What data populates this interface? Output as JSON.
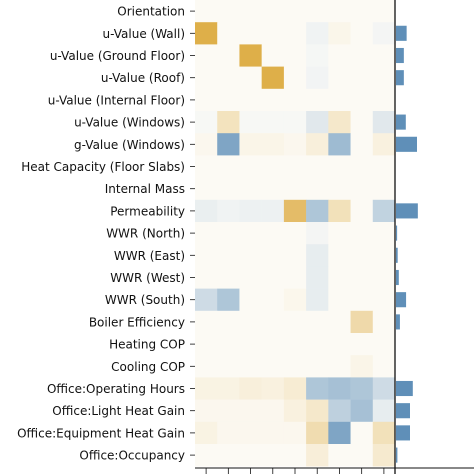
{
  "chart_data": {
    "type": "heatmap",
    "title": "",
    "xlabel": "",
    "ylabel": "",
    "rows": [
      "Orientation",
      "u-Value (Wall)",
      "u-Value (Ground Floor)",
      "u-Value (Roof)",
      "u-Value (Internal Floor)",
      "u-Value (Windows)",
      "g-Value (Windows)",
      "Heat Capacity (Floor Slabs)",
      "Internal Mass",
      "Permeability",
      "WWR (North)",
      "WWR (East)",
      "WWR (West)",
      "WWR (South)",
      "Boiler Efficiency",
      "Heating COP",
      "Cooling COP",
      "Office:Operating Hours",
      "Office:Light Heat Gain",
      "Office:Equipment Heat Gain",
      "Office:Occupancy"
    ],
    "column_count": 9,
    "value_range": [
      -1,
      1
    ],
    "colormap": {
      "positive": "#d9a12a",
      "negative": "#5f8fb8",
      "neutral": "#fdfcf8"
    },
    "values": [
      [
        0.02,
        0.02,
        0.02,
        0.02,
        0.02,
        0.02,
        0.02,
        0.02,
        0.02
      ],
      [
        0.85,
        0.02,
        0.02,
        0.02,
        0.02,
        -0.08,
        0.07,
        0.02,
        -0.06
      ],
      [
        0.02,
        0.02,
        0.85,
        0.02,
        0.02,
        -0.05,
        0.02,
        0.02,
        0.02
      ],
      [
        0.02,
        0.02,
        0.02,
        0.85,
        0.02,
        -0.07,
        0.02,
        0.02,
        0.02
      ],
      [
        0.02,
        0.02,
        0.02,
        0.02,
        0.02,
        0.02,
        0.02,
        0.02,
        0.02
      ],
      [
        -0.04,
        0.28,
        -0.04,
        -0.04,
        -0.04,
        -0.18,
        0.22,
        0.02,
        -0.18
      ],
      [
        0.05,
        -0.8,
        0.08,
        0.08,
        0.05,
        0.14,
        -0.6,
        0.02,
        0.12
      ],
      [
        0.02,
        0.02,
        0.02,
        0.02,
        0.02,
        0.02,
        0.02,
        0.02,
        0.02
      ],
      [
        0.02,
        0.02,
        0.02,
        0.02,
        0.02,
        0.02,
        0.02,
        0.02,
        0.02
      ],
      [
        -0.12,
        -0.08,
        -0.1,
        -0.1,
        0.7,
        -0.5,
        0.3,
        0.02,
        -0.38
      ],
      [
        0.02,
        0.02,
        0.02,
        0.02,
        0.02,
        -0.06,
        0.02,
        0.02,
        0.02
      ],
      [
        0.02,
        0.02,
        0.02,
        0.02,
        0.02,
        -0.14,
        0.02,
        0.02,
        0.02
      ],
      [
        0.02,
        0.02,
        0.02,
        0.02,
        0.02,
        -0.14,
        0.02,
        0.02,
        0.02
      ],
      [
        -0.3,
        -0.5,
        0.02,
        0.02,
        0.06,
        -0.14,
        0.02,
        0.02,
        0.02
      ],
      [
        0.02,
        0.02,
        0.02,
        0.02,
        0.02,
        0.02,
        0.02,
        0.38,
        0.02
      ],
      [
        0.02,
        0.02,
        0.02,
        0.02,
        0.02,
        0.02,
        0.02,
        0.02,
        0.02
      ],
      [
        0.02,
        0.02,
        0.02,
        0.02,
        0.02,
        0.02,
        0.02,
        0.08,
        0.02
      ],
      [
        0.1,
        0.1,
        0.14,
        0.12,
        0.18,
        -0.5,
        -0.55,
        -0.5,
        -0.3
      ],
      [
        0.05,
        0.05,
        0.05,
        0.05,
        0.12,
        0.22,
        -0.4,
        -0.55,
        -0.14
      ],
      [
        0.1,
        0.05,
        0.05,
        0.05,
        0.05,
        0.35,
        -0.8,
        0.02,
        0.3
      ],
      [
        0.02,
        0.02,
        0.02,
        0.02,
        0.02,
        0.15,
        0.02,
        0.02,
        0.2
      ]
    ],
    "bar_values": [
      0,
      0.38,
      0.28,
      0.28,
      0,
      0.35,
      0.75,
      0,
      0,
      0.78,
      0.04,
      0.06,
      0.1,
      0.36,
      0.14,
      0,
      0,
      0.6,
      0.5,
      0.5,
      0.05
    ],
    "bar_color": "#5f8fb8"
  }
}
